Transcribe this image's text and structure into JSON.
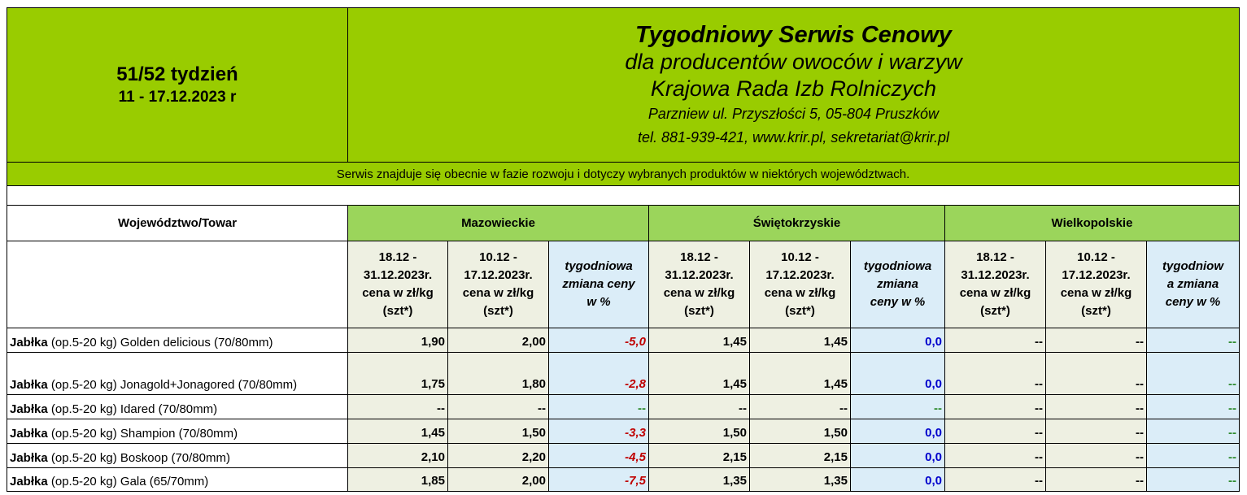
{
  "header": {
    "week_label": "51/52 tydzień",
    "week_dates": "11 - 17.12.2023 r",
    "title": "Tygodniowy Serwis Cenowy",
    "subtitle": "dla producentów owoców i warzyw",
    "organization": "Krajowa Rada Izb Rolniczych",
    "address": "Parzniew ul. Przyszłości 5, 05-804 Pruszków",
    "contact": "tel. 881-939-421, www.krir.pl, sekretariat@krir.pl"
  },
  "notice": "Serwis znajduje się obecnie w  fazie rozwoju i dotyczy wybranych produktów w niektórych województwach.",
  "table": {
    "row_header": "Województwo/Towar",
    "regions": [
      "Mazowieckie",
      "Świętokrzyskie",
      "Wielkopolskie"
    ],
    "col_headers": [
      [
        "18.12 -",
        "31.12.2023r.",
        "cena w zł/kg",
        "(szt*)"
      ],
      [
        "10.12 -",
        "17.12.2023r.",
        "cena w zł/kg",
        "(szt*)"
      ],
      [
        "tygodniowa",
        "zmiana ceny",
        "w %"
      ],
      [
        "18.12 -",
        "31.12.2023r.",
        "cena w zł/kg",
        "(szt*)"
      ],
      [
        "10.12 -",
        "17.12.2023r.",
        "cena w zł/kg",
        "(szt*)"
      ],
      [
        "tygodniowa",
        "zmiana",
        "ceny w %"
      ],
      [
        "18.12 -",
        "31.12.2023r.",
        "cena w zł/kg",
        "(szt*)"
      ],
      [
        "10.12 -",
        "17.12.2023r.",
        "cena w zł/kg",
        "(szt*)"
      ],
      [
        "tygodniow",
        "a zmiana",
        "ceny w %"
      ]
    ],
    "rows": [
      {
        "name": "Jabłka",
        "desc": " (op.5-20 kg) Golden delicious (70/80mm)",
        "values": [
          "1,90",
          "2,00",
          "-5,0",
          "1,45",
          "1,45",
          "0,0",
          "--",
          "--",
          "--"
        ]
      },
      {
        "name": "Jabłka",
        "desc": " (op.5-20 kg) Jonagold+Jonagored (70/80mm)",
        "values": [
          "1,75",
          "1,80",
          "-2,8",
          "1,45",
          "1,45",
          "0,0",
          "--",
          "--",
          "--"
        ]
      },
      {
        "name": "Jabłka",
        "desc": " (op.5-20 kg) Idared (70/80mm)",
        "values": [
          "--",
          "--",
          "--",
          "--",
          "--",
          "--",
          "--",
          "--",
          "--"
        ]
      },
      {
        "name": "Jabłka",
        "desc": " (op.5-20 kg) Shampion (70/80mm)",
        "values": [
          "1,45",
          "1,50",
          "-3,3",
          "1,50",
          "1,50",
          "0,0",
          "--",
          "--",
          "--"
        ]
      },
      {
        "name": "Jabłka",
        "desc": " (op.5-20 kg) Boskoop (70/80mm)",
        "values": [
          "2,10",
          "2,20",
          "-4,5",
          "2,15",
          "2,15",
          "0,0",
          "--",
          "--",
          "--"
        ]
      },
      {
        "name": "Jabłka",
        "desc": " (op.5-20 kg) Gala (65/70mm)",
        "values": [
          "1,85",
          "2,00",
          "-7,5",
          "1,35",
          "1,35",
          "0,0",
          "--",
          "--",
          "--"
        ]
      }
    ]
  }
}
